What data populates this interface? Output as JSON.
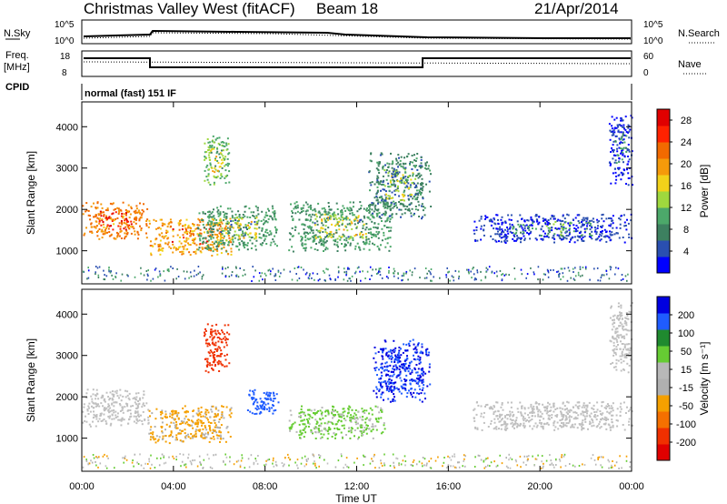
{
  "header": {
    "station": "Christmas Valley West (fitACF)",
    "beam": "Beam 18",
    "date": "21/Apr/2014"
  },
  "strips": {
    "nsky_label": "N.Sky",
    "nsky_ticks": [
      "10^5",
      "10^0"
    ],
    "nsearch_label": "N.Search",
    "nsearch_ticks": [
      "10^5",
      "10^0"
    ],
    "freq_label_1": "Freq.",
    "freq_label_2": "[MHz]",
    "freq_ticks": [
      "18",
      "8"
    ],
    "nave_label": "Nave",
    "nave_ticks": [
      "60",
      "0"
    ],
    "cpid_label": "CPID",
    "cpid_text": "normal (fast) 151 IF"
  },
  "colors": {
    "power_scale": [
      "#0000ff",
      "#2a4fb0",
      "#3d8060",
      "#4ca86a",
      "#9fd83e",
      "#f2d21a",
      "#f59a0a",
      "#f26a00",
      "#ff2200",
      "#e00000"
    ],
    "velocity_scale": [
      "#0000e0",
      "#1f5cff",
      "#1f8a2f",
      "#66cc33",
      "#b8b8b8",
      "#b0b0b0",
      "#f5a000",
      "#f57000",
      "#f03000",
      "#e00000"
    ],
    "velocity_gray": "#c0c0c0"
  },
  "chart_data": [
    {
      "type": "heatmap",
      "panel": "power",
      "xlabel": "",
      "ylabel": "Slant Range [km]",
      "x_ticks": [
        "00:00",
        "04:00",
        "08:00",
        "12:00",
        "16:00",
        "20:00",
        "00:00"
      ],
      "y_ticks": [
        "1000",
        "2000",
        "3000",
        "4000"
      ],
      "ylim": [
        200,
        4600
      ],
      "xlim_hours": [
        0,
        24
      ],
      "colorbar_label": "Power [dB]",
      "colorbar_ticks": [
        "4",
        "8",
        "12",
        "16",
        "20",
        "24",
        "28"
      ],
      "colorbar_range": [
        0,
        30
      ],
      "echo_regions": [
        {
          "t0": 0.0,
          "t1": 2.9,
          "r0": 1300,
          "r1": 2200,
          "value": 24
        },
        {
          "t0": 2.9,
          "t1": 6.5,
          "r0": 900,
          "r1": 1800,
          "value": 22
        },
        {
          "t0": 5.0,
          "t1": 8.5,
          "r0": 1000,
          "r1": 2100,
          "value": 12
        },
        {
          "t0": 5.3,
          "t1": 6.4,
          "r0": 2600,
          "r1": 3800,
          "value": 14
        },
        {
          "t0": 9.0,
          "t1": 13.5,
          "r0": 1000,
          "r1": 2200,
          "value": 12
        },
        {
          "t0": 12.5,
          "t1": 15.2,
          "r0": 1800,
          "r1": 3400,
          "value": 10
        },
        {
          "t0": 17.0,
          "t1": 24.0,
          "r0": 1200,
          "r1": 1900,
          "value": 6
        },
        {
          "t0": 23.0,
          "t1": 24.0,
          "r0": 2600,
          "r1": 4300,
          "value": 5
        }
      ]
    },
    {
      "type": "heatmap",
      "panel": "velocity",
      "xlabel": "Time UT",
      "ylabel": "Slant Range [km]",
      "x_ticks": [
        "00:00",
        "04:00",
        "08:00",
        "12:00",
        "16:00",
        "20:00",
        "00:00"
      ],
      "y_ticks": [
        "1000",
        "2000",
        "3000",
        "4000"
      ],
      "ylim": [
        200,
        4600
      ],
      "xlim_hours": [
        0,
        24
      ],
      "colorbar_label": "Velocity [m s⁻¹]",
      "colorbar_ticks": [
        "200",
        "100",
        "50",
        "15",
        "-15",
        "-50",
        "-100",
        "-200"
      ],
      "colorbar_range": [
        -250,
        250
      ],
      "echo_regions": [
        {
          "t0": 0.0,
          "t1": 2.9,
          "r0": 1300,
          "r1": 2200,
          "value": 0
        },
        {
          "t0": 2.9,
          "t1": 6.5,
          "r0": 900,
          "r1": 1800,
          "value": -60
        },
        {
          "t0": 5.3,
          "t1": 6.4,
          "r0": 2600,
          "r1": 3800,
          "value": -180
        },
        {
          "t0": 7.2,
          "t1": 8.6,
          "r0": 1600,
          "r1": 2200,
          "value": 180
        },
        {
          "t0": 9.0,
          "t1": 13.2,
          "r0": 1000,
          "r1": 1800,
          "value": 60
        },
        {
          "t0": 12.7,
          "t1": 15.2,
          "r0": 1900,
          "r1": 3400,
          "value": 200
        },
        {
          "t0": 17.0,
          "t1": 24.0,
          "r0": 1200,
          "r1": 1900,
          "value": 0
        },
        {
          "t0": 23.0,
          "t1": 24.0,
          "r0": 2600,
          "r1": 4300,
          "value": 0
        }
      ]
    }
  ]
}
